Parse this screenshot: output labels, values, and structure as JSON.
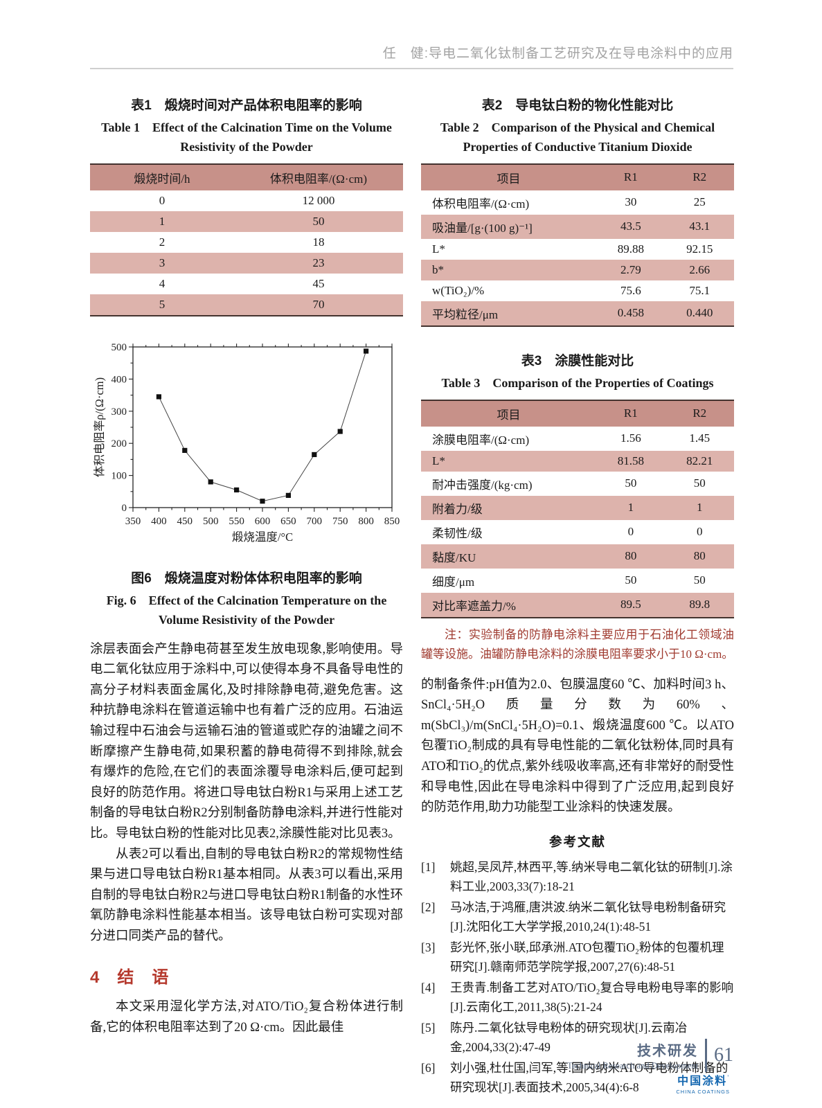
{
  "page": {
    "header": "任　健:导电二氧化钛制备工艺研究及在导电涂料中的应用",
    "footer": {
      "cn": "技术研发",
      "en": "Technical Research and Development",
      "page_num": "61"
    },
    "logo": {
      "cn": "中国涂料",
      "tm": "’",
      "en": "CHINA COATINGS"
    }
  },
  "colors": {
    "accent_red": "#b5392d",
    "note_red": "#a03b30",
    "table_header_bg": "#c79189",
    "table_row_bg": "#ddb3ac",
    "footer_blue": "#5a6b84",
    "logo_blue": "#1668b0"
  },
  "table1": {
    "title_cn": "表1　煅烧时间对产品体积电阻率的影响",
    "title_en": "Table 1　Effect of the Calcination Time on the Volume Resistivity of the Powder",
    "headers": [
      "煅烧时间/h",
      "体积电阻率/(Ω·cm)"
    ],
    "rows": [
      [
        "0",
        "12 000"
      ],
      [
        "1",
        "50"
      ],
      [
        "2",
        "18"
      ],
      [
        "3",
        "23"
      ],
      [
        "4",
        "45"
      ],
      [
        "5",
        "70"
      ]
    ]
  },
  "table2": {
    "title_cn": "表2　导电钛白粉的物化性能对比",
    "title_en": "Table 2　Comparison of the Physical and Chemical Properties of Conductive Titanium Dioxide",
    "headers": [
      "项目",
      "R1",
      "R2"
    ],
    "rows": [
      [
        "体积电阻率/(Ω·cm)",
        "30",
        "25"
      ],
      [
        "吸油量/[g·(100 g)⁻¹]",
        "43.5",
        "43.1"
      ],
      [
        "L*",
        "89.88",
        "92.15"
      ],
      [
        "b*",
        "2.79",
        "2.66"
      ],
      [
        "w(TiO₂)/%",
        "75.6",
        "75.1"
      ],
      [
        "平均粒径/μm",
        "0.458",
        "0.440"
      ]
    ]
  },
  "table3": {
    "title_cn": "表3　涂膜性能对比",
    "title_en": "Table 3　Comparison of the Properties of Coatings",
    "headers": [
      "项目",
      "R1",
      "R2"
    ],
    "rows": [
      [
        "涂膜电阻率/(Ω·cm)",
        "1.56",
        "1.45"
      ],
      [
        "L*",
        "81.58",
        "82.21"
      ],
      [
        "耐冲击强度/(kg·cm)",
        "50",
        "50"
      ],
      [
        "附着力/级",
        "1",
        "1"
      ],
      [
        "柔韧性/级",
        "0",
        "0"
      ],
      [
        "黏度/KU",
        "80",
        "80"
      ],
      [
        "细度/μm",
        "50",
        "50"
      ],
      [
        "对比率遮盖力/%",
        "89.5",
        "89.8"
      ]
    ]
  },
  "table3_note": "注：实验制备的防静电涂料主要应用于石油化工领域油罐等设施。油罐防静电涂料的涂膜电阻率要求小于10 Ω·cm。",
  "chart_data": {
    "type": "line",
    "x": [
      400,
      450,
      500,
      550,
      600,
      650,
      700,
      750,
      800
    ],
    "y": [
      345,
      178,
      80,
      55,
      20,
      38,
      165,
      237,
      487
    ],
    "xlabel": "煅烧温度/°C",
    "ylabel": "体积电阻率ρ/(Ω·cm)",
    "xlim": [
      350,
      850
    ],
    "ylim": [
      0,
      500
    ],
    "x_major": 50,
    "x_minor": 25,
    "y_major": 100,
    "y_minor": 50,
    "marker": "square",
    "grid": false,
    "legend": "none"
  },
  "figure6": {
    "caption_cn": "图6　煅烧温度对粉体体积电阻率的影响",
    "caption_en": "Fig. 6　Effect of the Calcination Temperature on the Volume Resistivity of the Powder"
  },
  "body": {
    "left_p1": "涂层表面会产生静电荷甚至发生放电现象,影响使用。导电二氧化钛应用于涂料中,可以使得本身不具备导电性的高分子材料表面金属化,及时排除静电荷,避免危害。这种抗静电涂料在管道运输中也有着广泛的应用。石油运输过程中石油会与运输石油的管道或贮存的油罐之间不断摩擦产生静电荷,如果积蓄的静电荷得不到排除,就会有爆炸的危险,在它们的表面涂覆导电涂料后,便可起到良好的防范作用。将进口导电钛白粉R1与采用上述工艺制备的导电钛白粉R2分别制备防静电涂料,并进行性能对比。导电钛白粉的性能对比见表2,涂膜性能对比见表3。",
    "left_p2": "从表2可以看出,自制的导电钛白粉R2的常规物性结果与进口导电钛白粉R1基本相同。从表3可以看出,采用自制的导电钛白粉R2与进口导电钛白粉R1制备的水性环氧防静电涂料性能基本相当。该导电钛白粉可实现对部分进口同类产品的替代。",
    "section_heading": "4　结　语",
    "left_p3": "本文采用湿化学方法,对ATO/TiO₂复合粉体进行制备,它的体积电阻率达到了20 Ω·cm。因此最佳",
    "right_p1": "的制备条件:pH值为2.0、包膜温度60 ℃、加料时间3 h、SnCl₄·5H₂O质量分数为60%、m(SbCl₃)/m(SnCl₄·5H₂O)=0.1、煅烧温度600 ℃。以ATO包覆TiO₂制成的具有导电性能的二氧化钛粉体,同时具有ATO和TiO₂的优点,紫外线吸收率高,还有非常好的耐受性和导电性,因此在导电涂料中得到了广泛应用,起到良好的防范作用,助力功能型工业涂料的快速发展。"
  },
  "references": {
    "heading": "参考文献",
    "items": [
      {
        "num": "[1]",
        "text": "姚超,吴凤芹,林西平,等.纳米导电二氧化钛的研制[J].涂料工业,2003,33(7):18-21"
      },
      {
        "num": "[2]",
        "text": "马冰洁,于鸿雁,唐洪波.纳米二氧化钛导电粉制备研究[J].沈阳化工大学学报,2010,24(1):48-51"
      },
      {
        "num": "[3]",
        "text": "彭光怀,张小联,邱承洲.ATO包覆TiO₂粉体的包覆机理研究[J].赣南师范学院学报,2007,27(6):48-51"
      },
      {
        "num": "[4]",
        "text": "王贵青.制备工艺对ATO/TiO₂复合导电粉电导率的影响[J].云南化工,2011,38(5):21-24"
      },
      {
        "num": "[5]",
        "text": "陈丹.二氧化钛导电粉体的研究现状[J].云南冶金,2004,33(2):47-49"
      },
      {
        "num": "[6]",
        "text": "刘小强,杜仕国,闫军,等.国内纳米ATO导电粉体制备的研究现状[J].表面技术,2005,34(4):6-8"
      }
    ]
  }
}
